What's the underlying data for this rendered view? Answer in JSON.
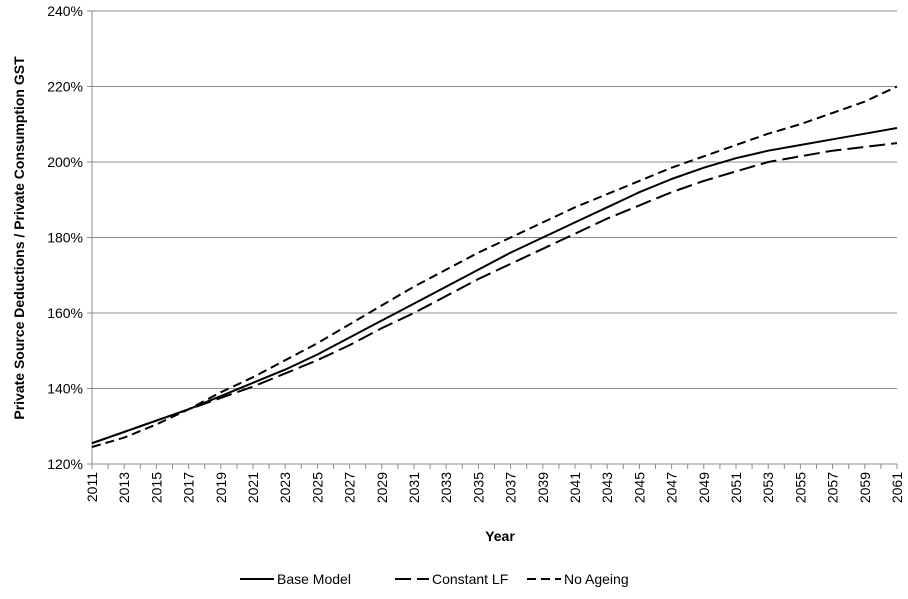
{
  "chart_data": {
    "type": "line",
    "xlabel": "Year",
    "ylabel": "Private Source Deductions / Private Consumption GST",
    "ylim": [
      1.2,
      2.4
    ],
    "y_ticks": [
      "120%",
      "140%",
      "160%",
      "180%",
      "200%",
      "220%",
      "240%"
    ],
    "y_tick_values": [
      1.2,
      1.4,
      1.6,
      1.8,
      2.0,
      2.2,
      2.4
    ],
    "x_tick_labels": [
      "2011",
      "2013",
      "2015",
      "2017",
      "2019",
      "2021",
      "2023",
      "2025",
      "2027",
      "2029",
      "2031",
      "2033",
      "2035",
      "2037",
      "2039",
      "2041",
      "2043",
      "2045",
      "2047",
      "2049",
      "2051",
      "2053",
      "2055",
      "2057",
      "2059",
      "2061"
    ],
    "x_range": [
      2011,
      2061
    ],
    "grid": "horizontal",
    "legend_position": "bottom",
    "series": [
      {
        "name": "Base Model",
        "style": "solid",
        "x": [
          2011,
          2013,
          2015,
          2017,
          2019,
          2021,
          2023,
          2025,
          2027,
          2029,
          2031,
          2033,
          2035,
          2037,
          2039,
          2041,
          2043,
          2045,
          2047,
          2049,
          2051,
          2053,
          2055,
          2057,
          2059,
          2061
        ],
        "values": [
          1.255,
          1.285,
          1.315,
          1.345,
          1.38,
          1.415,
          1.45,
          1.49,
          1.535,
          1.58,
          1.625,
          1.67,
          1.715,
          1.76,
          1.8,
          1.84,
          1.88,
          1.92,
          1.955,
          1.985,
          2.01,
          2.03,
          2.045,
          2.06,
          2.075,
          2.09
        ]
      },
      {
        "name": "Constant LF",
        "style": "long-dash",
        "x": [
          2011,
          2013,
          2015,
          2017,
          2019,
          2021,
          2023,
          2025,
          2027,
          2029,
          2031,
          2033,
          2035,
          2037,
          2039,
          2041,
          2043,
          2045,
          2047,
          2049,
          2051,
          2053,
          2055,
          2057,
          2059,
          2061
        ],
        "values": [
          1.255,
          1.285,
          1.315,
          1.345,
          1.375,
          1.405,
          1.44,
          1.475,
          1.515,
          1.56,
          1.6,
          1.645,
          1.69,
          1.73,
          1.77,
          1.81,
          1.85,
          1.885,
          1.92,
          1.95,
          1.975,
          2.0,
          2.015,
          2.03,
          2.04,
          2.05
        ]
      },
      {
        "name": "No Ageing",
        "style": "short-dash",
        "x": [
          2011,
          2013,
          2015,
          2017,
          2019,
          2021,
          2023,
          2025,
          2027,
          2029,
          2031,
          2033,
          2035,
          2037,
          2039,
          2041,
          2043,
          2045,
          2047,
          2049,
          2051,
          2053,
          2055,
          2057,
          2059,
          2061
        ],
        "values": [
          1.245,
          1.27,
          1.305,
          1.345,
          1.39,
          1.43,
          1.475,
          1.52,
          1.57,
          1.62,
          1.67,
          1.715,
          1.76,
          1.8,
          1.84,
          1.88,
          1.915,
          1.95,
          1.985,
          2.015,
          2.045,
          2.075,
          2.1,
          2.13,
          2.16,
          2.2
        ]
      }
    ]
  }
}
